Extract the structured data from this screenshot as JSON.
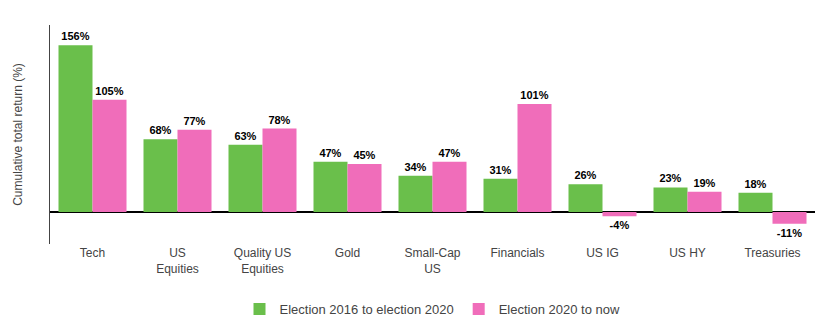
{
  "chart_data": {
    "type": "bar",
    "categories": [
      "Tech",
      "US\nEquities",
      "Quality US\nEquities",
      "Gold",
      "Small-Cap\nUS",
      "Financials",
      "US IG",
      "US HY",
      "Treasuries"
    ],
    "series": [
      {
        "name": "Election 2016 to election 2020",
        "color": "#6abf4b",
        "values": [
          156,
          68,
          63,
          47,
          34,
          31,
          26,
          23,
          18
        ],
        "value_labels": [
          "156%",
          "68%",
          "63%",
          "47%",
          "34%",
          "31%",
          "26%",
          "23%",
          "18%"
        ]
      },
      {
        "name": "Election 2020 to now",
        "color": "#f06dba",
        "values": [
          105,
          77,
          78,
          45,
          47,
          101,
          -4,
          19,
          -11
        ],
        "value_labels": [
          "105%",
          "77%",
          "78%",
          "45%",
          "47%",
          "101%",
          "-4%",
          "19%",
          "-11%"
        ]
      }
    ],
    "ylabel": "Cumulative total return (%)",
    "ylim": [
      -30,
      175
    ],
    "yticks": [],
    "grid": false,
    "legend": "bottom",
    "data_labels": true,
    "tick_labels": "x"
  }
}
